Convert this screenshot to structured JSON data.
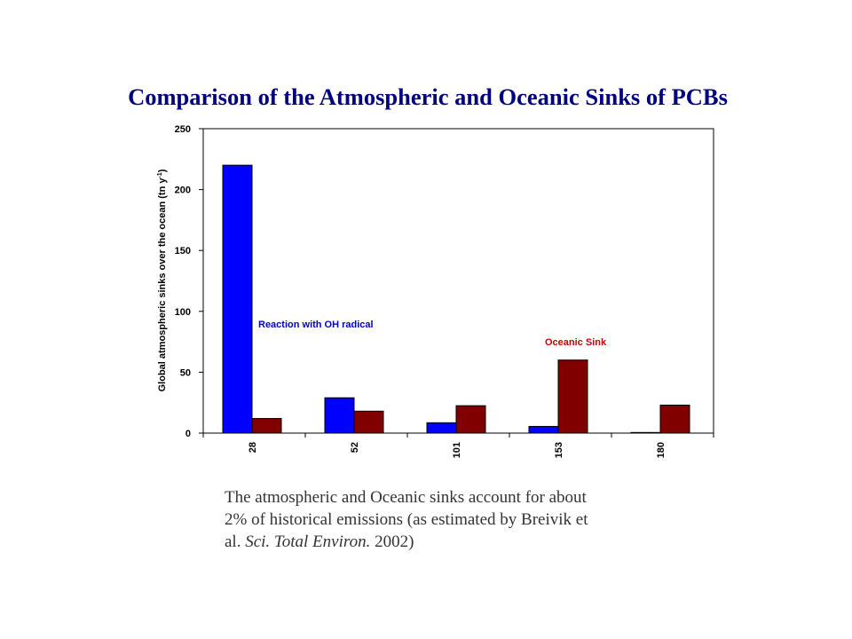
{
  "slide": {
    "title": "Comparison of the Atmospheric and Oceanic Sinks of PCBs"
  },
  "caption": {
    "line1": "The atmospheric and Oceanic sinks account for about",
    "line2": "2% of historical emissions (as estimated by Breivik et",
    "line3_prefix": "al. ",
    "line3_italic": "Sci. Total Environ.",
    "line3_suffix": " 2002)"
  },
  "chart_data": {
    "type": "bar",
    "categories": [
      "28",
      "52",
      "101",
      "153",
      "180"
    ],
    "series": [
      {
        "name": "",
        "values": [
          220,
          29,
          8.5,
          5.5,
          0.5
        ],
        "color": "#0000ff"
      },
      {
        "name": "",
        "values": [
          12,
          18,
          22.5,
          60,
          23
        ],
        "color": "#800000"
      }
    ],
    "title": "",
    "xlabel": "",
    "ylabel": "Global atmospheric sinks over the ocean (tn y",
    "ylabel_sup": "-1",
    "ylabel_close": ")",
    "ylim": [
      0,
      250
    ],
    "yticks": [
      0,
      50,
      100,
      150,
      200,
      250
    ],
    "grid": false,
    "annotations": [
      {
        "text": "Reaction with OH radical",
        "color": "#0000cc"
      },
      {
        "text": "Oceanic Sink",
        "color": "#cc0000"
      }
    ]
  }
}
